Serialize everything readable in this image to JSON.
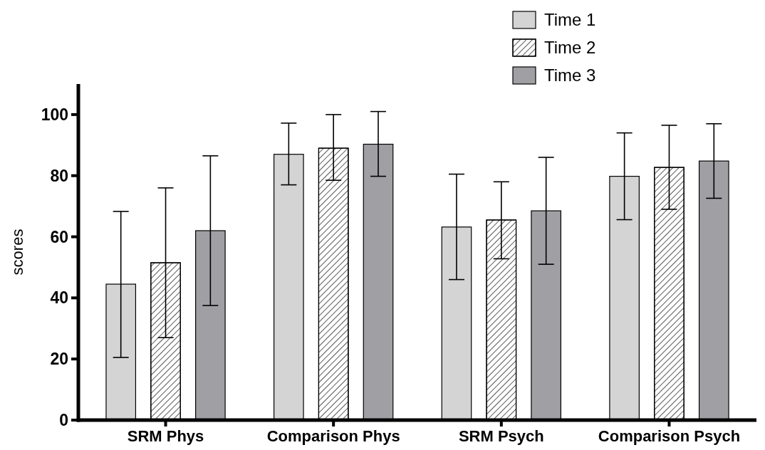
{
  "chart_data": {
    "type": "bar",
    "ylabel": "scores",
    "categories": [
      "SRM Phys",
      "Comparison Phys",
      "SRM Psych",
      "Comparison Psych"
    ],
    "series": [
      {
        "name": "Time 1",
        "color": "#d4d4d4",
        "values": [
          44.5,
          87,
          63.2,
          79.8
        ],
        "errors": [
          [
            20.5,
            68.3
          ],
          [
            77,
            97.2
          ],
          [
            46,
            80.5
          ],
          [
            65.6,
            94
          ]
        ]
      },
      {
        "name": "Time 2",
        "color": "#ffffff",
        "values": [
          51.5,
          89,
          65.5,
          82.7
        ],
        "errors": [
          [
            27,
            76
          ],
          [
            78.5,
            100
          ],
          [
            52.8,
            78
          ],
          [
            69,
            96.5
          ]
        ]
      },
      {
        "name": "Time 3",
        "color": "#a0a0a4",
        "values": [
          62,
          90.3,
          68.5,
          84.8
        ],
        "errors": [
          [
            37.5,
            86.5
          ],
          [
            79.8,
            101
          ],
          [
            51,
            86
          ],
          [
            72.6,
            97
          ]
        ]
      }
    ],
    "ylim": [
      0,
      110
    ],
    "yticks": [
      0,
      20,
      40,
      60,
      80,
      100
    ],
    "grid": false,
    "legend": "top right"
  }
}
